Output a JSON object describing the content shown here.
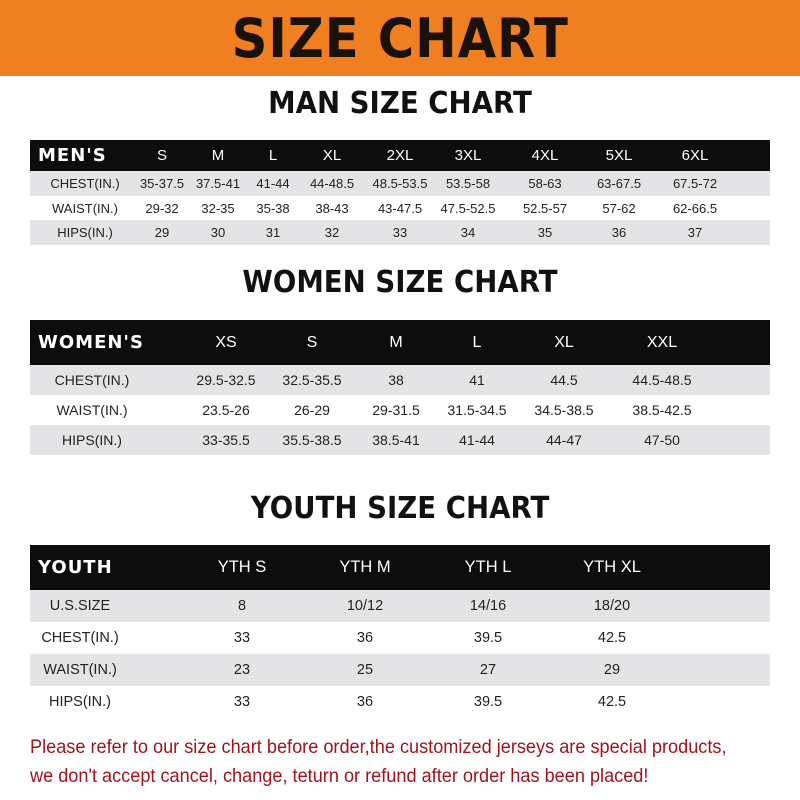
{
  "banner": {
    "title": "SIZE CHART",
    "color": "#f07f22"
  },
  "men": {
    "title": "MAN SIZE CHART",
    "header": [
      "MEN'S",
      "S",
      "M",
      "L",
      "XL",
      "2XL",
      "3XL",
      "4XL",
      "5XL",
      "6XL"
    ],
    "rows": [
      [
        "CHEST(IN.)",
        "35-37.5",
        "37.5-41",
        "41-44",
        "44-48.5",
        "48.5-53.5",
        "53.5-58",
        "58-63",
        "63-67.5",
        "67.5-72"
      ],
      [
        "WAIST(IN.)",
        "29-32",
        "32-35",
        "35-38",
        "38-43",
        "43-47.5",
        "47.5-52.5",
        "52.5-57",
        "57-62",
        "62-66.5"
      ],
      [
        "HIPS(IN.)",
        "29",
        "30",
        "31",
        "32",
        "33",
        "34",
        "35",
        "36",
        "37"
      ]
    ]
  },
  "women": {
    "title": "WOMEN SIZE CHART",
    "header": [
      "WOMEN'S",
      "XS",
      "S",
      "M",
      "L",
      "XL",
      "XXL"
    ],
    "rows": [
      [
        "CHEST(IN.)",
        "29.5-32.5",
        "32.5-35.5",
        "38",
        "41",
        "44.5",
        "44.5-48.5"
      ],
      [
        "WAIST(IN.)",
        "23.5-26",
        "26-29",
        "29-31.5",
        "31.5-34.5",
        "34.5-38.5",
        "38.5-42.5"
      ],
      [
        "HIPS(IN.)",
        "33-35.5",
        "35.5-38.5",
        "38.5-41",
        "41-44",
        "44-47",
        "47-50"
      ]
    ]
  },
  "youth": {
    "title": "YOUTH SIZE CHART",
    "header": [
      "YOUTH",
      "YTH S",
      "YTH M",
      "YTH L",
      "YTH XL"
    ],
    "rows": [
      [
        "U.S.SIZE",
        "8",
        "10/12",
        "14/16",
        "18/20"
      ],
      [
        "CHEST(IN.)",
        "33",
        "36",
        "39.5",
        "42.5"
      ],
      [
        "WAIST(IN.)",
        "23",
        "25",
        "27",
        "29"
      ],
      [
        "HIPS(IN.)",
        "33",
        "36",
        "39.5",
        "42.5"
      ]
    ]
  },
  "note": {
    "line1": "Please refer to our size chart before order,the customized jerseys are special products,",
    "line2": "we don't accept cancel, change, teturn or refund after order has been placed!",
    "color": "#a0141a"
  }
}
